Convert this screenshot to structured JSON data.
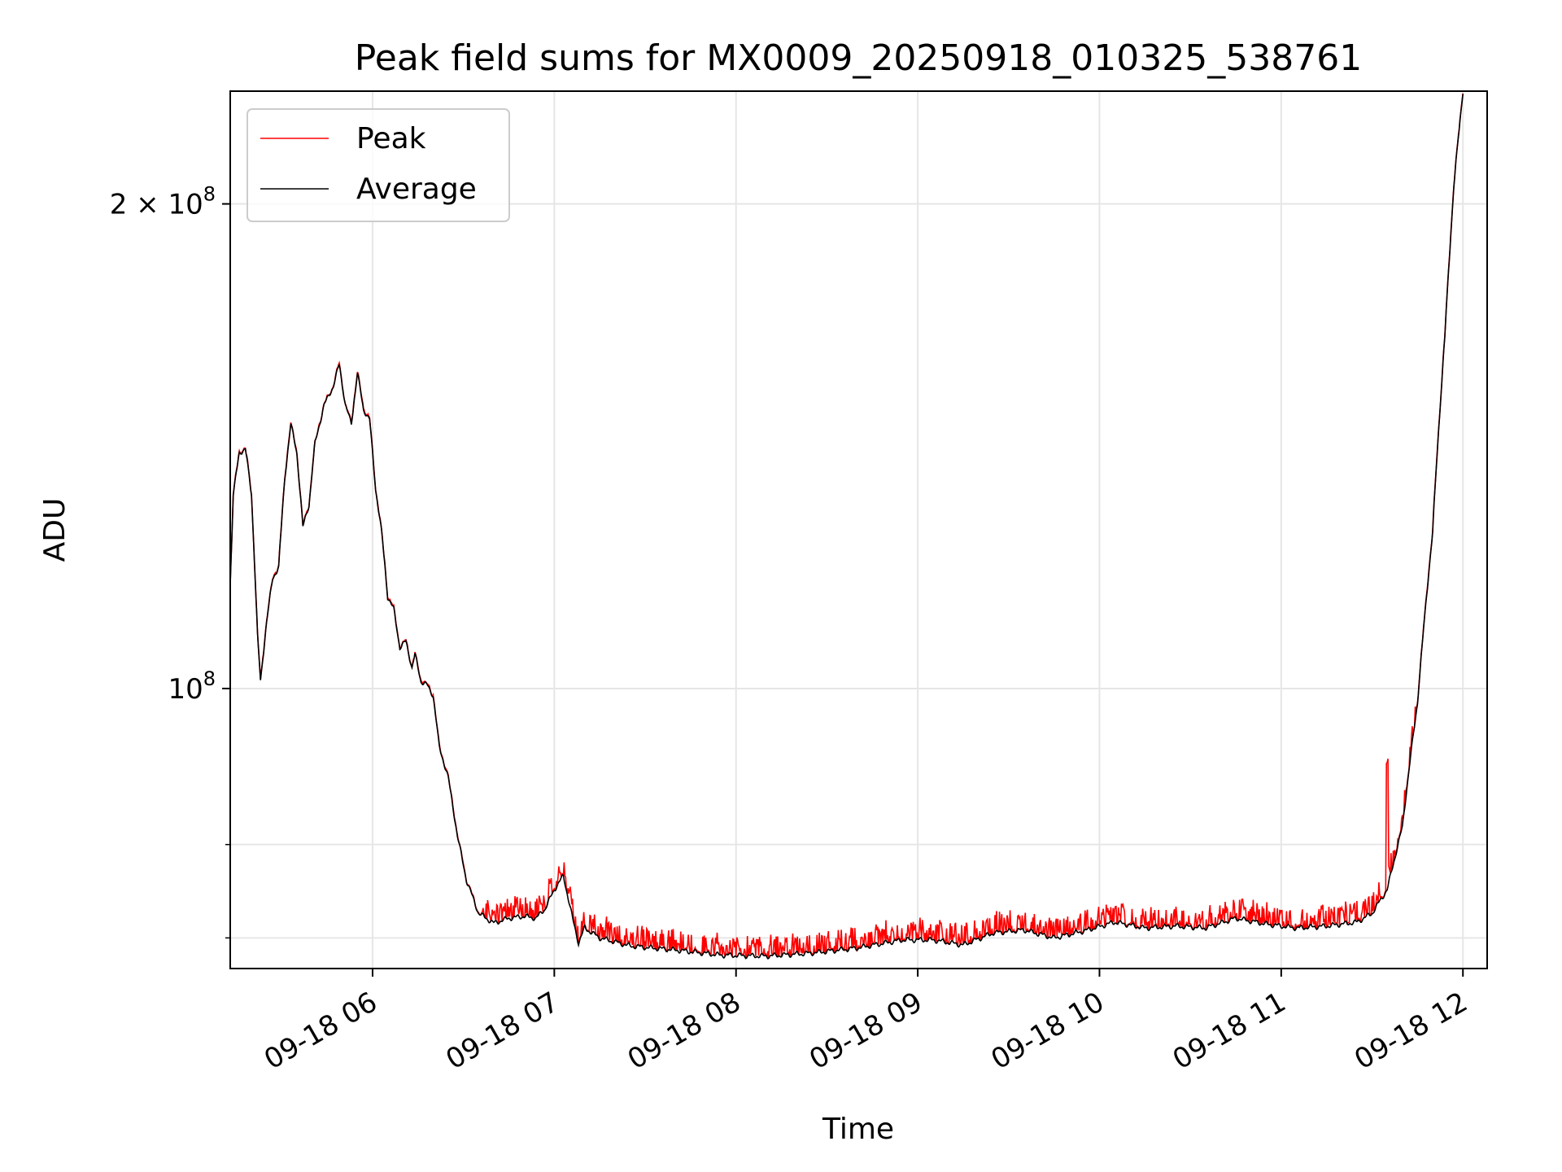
{
  "chart_data": {
    "type": "line",
    "title": "Peak field sums for MX0009_20250918_010325_538761",
    "xlabel": "Time",
    "ylabel": "ADU",
    "yscale": "log",
    "ylim": [
      67000000,
      235000000
    ],
    "xlim": [
      "09-18 05:13",
      "09-18 12:08"
    ],
    "grid": true,
    "legend": "upper left",
    "x_ticks": [
      "09-18 06",
      "09-18 07",
      "09-18 08",
      "09-18 09",
      "09-18 10",
      "09-18 11",
      "09-18 12"
    ],
    "y_major_ticks": [
      {
        "base": "2",
        "times": "×",
        "ten": "10",
        "exp": "8"
      },
      {
        "base": "",
        "times": "",
        "ten": "10",
        "exp": "8"
      }
    ],
    "series": [
      {
        "name": "Peak",
        "color": "#ff0000",
        "noise": "spiky"
      },
      {
        "name": "Average",
        "color": "#000000",
        "noise": "smooth"
      }
    ],
    "points": [
      [
        "09-18 05:13",
        116000000
      ],
      [
        "09-18 05:14",
        132000000
      ],
      [
        "09-18 05:16",
        140000000
      ],
      [
        "09-18 05:18",
        141000000
      ],
      [
        "09-18 05:20",
        132000000
      ],
      [
        "09-18 05:22",
        108000000
      ],
      [
        "09-18 05:23",
        101000000
      ],
      [
        "09-18 05:25",
        110000000
      ],
      [
        "09-18 05:27",
        117000000
      ],
      [
        "09-18 05:29",
        119000000
      ],
      [
        "09-18 05:31",
        135000000
      ],
      [
        "09-18 05:33",
        146000000
      ],
      [
        "09-18 05:35",
        140000000
      ],
      [
        "09-18 05:37",
        126000000
      ],
      [
        "09-18 05:39",
        130000000
      ],
      [
        "09-18 05:41",
        142000000
      ],
      [
        "09-18 05:44",
        150000000
      ],
      [
        "09-18 05:47",
        154000000
      ],
      [
        "09-18 05:49",
        159000000
      ],
      [
        "09-18 05:51",
        150000000
      ],
      [
        "09-18 05:53",
        146000000
      ],
      [
        "09-18 05:55",
        157000000
      ],
      [
        "09-18 05:57",
        149000000
      ],
      [
        "09-18 05:59",
        147000000
      ],
      [
        "09-18 06:01",
        133000000
      ],
      [
        "09-18 06:03",
        125000000
      ],
      [
        "09-18 06:05",
        114000000
      ],
      [
        "09-18 06:07",
        112000000
      ],
      [
        "09-18 06:09",
        106000000
      ],
      [
        "09-18 06:11",
        107000000
      ],
      [
        "09-18 06:13",
        103000000
      ],
      [
        "09-18 06:14",
        105000000
      ],
      [
        "09-18 06:16",
        101000000
      ],
      [
        "09-18 06:18",
        100500000
      ],
      [
        "09-18 06:20",
        99000000
      ],
      [
        "09-18 06:22",
        92000000
      ],
      [
        "09-18 06:25",
        88000000
      ],
      [
        "09-18 06:28",
        81000000
      ],
      [
        "09-18 06:31",
        76000000
      ],
      [
        "09-18 06:35",
        72500000
      ],
      [
        "09-18 06:40",
        71500000
      ],
      [
        "09-18 06:45",
        72000000
      ],
      [
        "09-18 06:50",
        72200000
      ],
      [
        "09-18 06:54",
        72000000
      ],
      [
        "09-18 06:57",
        73000000
      ],
      [
        "09-18 07:00",
        75000000
      ],
      [
        "09-18 07:03",
        76500000
      ],
      [
        "09-18 07:06",
        72000000
      ],
      [
        "09-18 07:08",
        69500000
      ],
      [
        "09-18 07:10",
        71000000
      ],
      [
        "09-18 07:15",
        70000000
      ],
      [
        "09-18 07:25",
        69200000
      ],
      [
        "09-18 07:40",
        68800000
      ],
      [
        "09-18 07:55",
        68300000
      ],
      [
        "09-18 08:10",
        68200000
      ],
      [
        "09-18 08:25",
        68500000
      ],
      [
        "09-18 08:40",
        69000000
      ],
      [
        "09-18 08:55",
        69800000
      ],
      [
        "09-18 09:05",
        69800000
      ],
      [
        "09-18 09:15",
        69300000
      ],
      [
        "09-18 09:25",
        70500000
      ],
      [
        "09-18 09:35",
        70800000
      ],
      [
        "09-18 09:45",
        70000000
      ],
      [
        "09-18 09:55",
        70700000
      ],
      [
        "09-18 10:05",
        71600000
      ],
      [
        "09-18 10:15",
        71000000
      ],
      [
        "09-18 10:25",
        71200000
      ],
      [
        "09-18 10:35",
        71000000
      ],
      [
        "09-18 10:45",
        72000000
      ],
      [
        "09-18 10:55",
        71400000
      ],
      [
        "09-18 11:05",
        71000000
      ],
      [
        "09-18 11:15",
        71200000
      ],
      [
        "09-18 11:25",
        71600000
      ],
      [
        "09-18 11:30",
        72500000
      ],
      [
        "09-18 11:35",
        75000000
      ],
      [
        "09-18 11:40",
        82000000
      ],
      [
        "09-18 11:45",
        98000000
      ],
      [
        "09-18 11:50",
        125000000
      ],
      [
        "09-18 11:54",
        165000000
      ],
      [
        "09-18 11:57",
        205000000
      ],
      [
        "09-18 12:00",
        235000000
      ]
    ]
  }
}
